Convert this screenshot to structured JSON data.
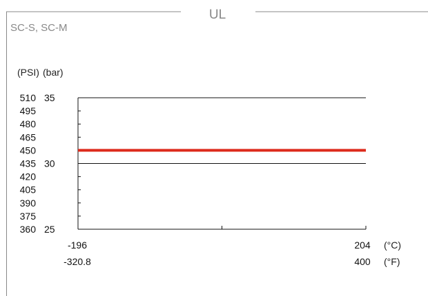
{
  "panel": {
    "title": "UL",
    "subtitle": "SC-S, SC-M"
  },
  "chart_data": {
    "type": "line",
    "y_unit_left": "(PSI)",
    "y_unit_right": "(bar)",
    "x_unit_top": "(°C)",
    "x_unit_bottom": "(°F)",
    "xlim_c": [
      -196,
      204
    ],
    "xlim_f": [
      -320.8,
      400
    ],
    "x_tick_labels_c": [
      "-196",
      "204"
    ],
    "x_tick_labels_f": [
      "-320.8",
      "400"
    ],
    "ylim_bar": [
      25,
      35
    ],
    "y_ticks_bar": [
      "35",
      "30",
      "25"
    ],
    "y_ticks_psi": [
      "510",
      "495",
      "480",
      "465",
      "450",
      "435",
      "420",
      "405",
      "390",
      "375",
      "360"
    ],
    "grid_lines_bar": [
      35,
      30
    ],
    "series": [
      {
        "x_c": [
          -196,
          204
        ],
        "y_bar": [
          31,
          31
        ],
        "color": "#dd2b1c"
      }
    ]
  }
}
